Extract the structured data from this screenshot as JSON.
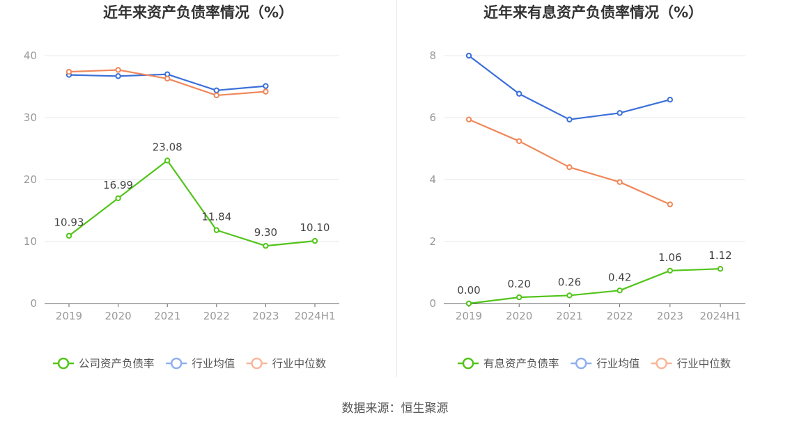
{
  "source_text": "数据来源：恒生聚源",
  "colors": {
    "company": "#52c41a",
    "average": "#3a6fd8",
    "median": "#f0875a",
    "legend_average": "#8fb0ee",
    "legend_median": "#f8b79a",
    "grid": "#e6e8ee",
    "axis": "#666666",
    "tick_text": "#999999",
    "title": "#333333"
  },
  "chart_data": [
    {
      "type": "line",
      "title": "近年来资产负债率情况（%）",
      "categories": [
        "2019",
        "2020",
        "2021",
        "2022",
        "2023",
        "2024H1"
      ],
      "ylim": [
        0,
        40
      ],
      "yticks": [
        0,
        10,
        20,
        30,
        40
      ],
      "grid": true,
      "legend_position": "bottom",
      "series": [
        {
          "name": "公司资产负债率",
          "color_key": "company",
          "legend_color_key": "company",
          "values": [
            10.93,
            16.99,
            23.08,
            11.84,
            9.3,
            10.1
          ],
          "labels": [
            "10.93",
            "16.99",
            "23.08",
            "11.84",
            "9.30",
            "10.10"
          ]
        },
        {
          "name": "行业均值",
          "color_key": "average",
          "legend_color_key": "legend_average",
          "values": [
            36.9,
            36.7,
            37.0,
            34.4,
            35.1,
            null
          ]
        },
        {
          "name": "行业中位数",
          "color_key": "median",
          "legend_color_key": "legend_median",
          "values": [
            37.4,
            37.7,
            36.3,
            33.6,
            34.2,
            null
          ]
        }
      ]
    },
    {
      "type": "line",
      "title": "近年来有息资产负债率情况（%）",
      "categories": [
        "2019",
        "2020",
        "2021",
        "2022",
        "2023",
        "2024H1"
      ],
      "ylim": [
        0,
        8
      ],
      "yticks": [
        0,
        2,
        4,
        6,
        8
      ],
      "grid": true,
      "legend_position": "bottom",
      "series": [
        {
          "name": "有息资产负债率",
          "color_key": "company",
          "legend_color_key": "company",
          "values": [
            0.0,
            0.2,
            0.26,
            0.42,
            1.06,
            1.12
          ],
          "labels": [
            "0.00",
            "0.20",
            "0.26",
            "0.42",
            "1.06",
            "1.12"
          ]
        },
        {
          "name": "行业均值",
          "color_key": "average",
          "legend_color_key": "legend_average",
          "values": [
            8.0,
            6.77,
            5.94,
            6.15,
            6.58,
            null
          ]
        },
        {
          "name": "行业中位数",
          "color_key": "median",
          "legend_color_key": "legend_median",
          "values": [
            5.94,
            5.24,
            4.4,
            3.92,
            3.2,
            null
          ]
        }
      ]
    }
  ]
}
